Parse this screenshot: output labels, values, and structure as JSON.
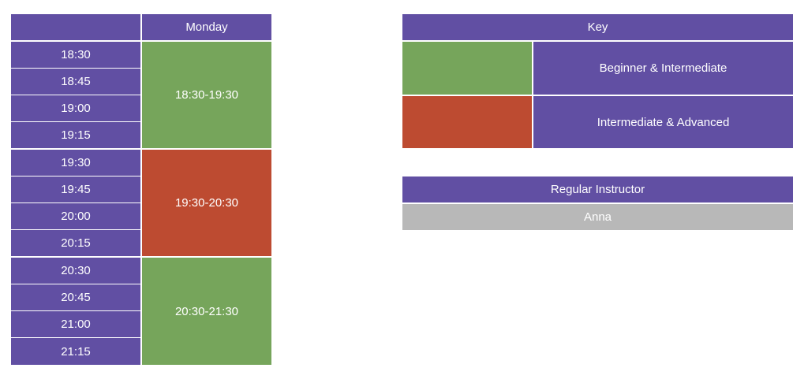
{
  "colors": {
    "header": "#614fa3",
    "beginner_intermediate": "#76a55b",
    "intermediate_advanced": "#bd4b31",
    "instructor_row": "#b8b8b8",
    "text": "#ffffff"
  },
  "schedule": {
    "corner": "",
    "day": "Monday",
    "times": [
      "18:30",
      "18:45",
      "19:00",
      "19:15",
      "19:30",
      "19:45",
      "20:00",
      "20:15",
      "20:30",
      "20:45",
      "21:00",
      "21:15"
    ],
    "classes": [
      {
        "label": "18:30-19:30",
        "level": "beginner_intermediate"
      },
      {
        "label": "19:30-20:30",
        "level": "intermediate_advanced"
      },
      {
        "label": "20:30-21:30",
        "level": "beginner_intermediate"
      }
    ]
  },
  "key": {
    "title": "Key",
    "items": [
      {
        "label": "Beginner & Intermediate",
        "level": "beginner_intermediate"
      },
      {
        "label": "Intermediate & Advanced",
        "level": "intermediate_advanced"
      }
    ]
  },
  "instructor": {
    "title": "Regular Instructor",
    "name": "Anna"
  }
}
